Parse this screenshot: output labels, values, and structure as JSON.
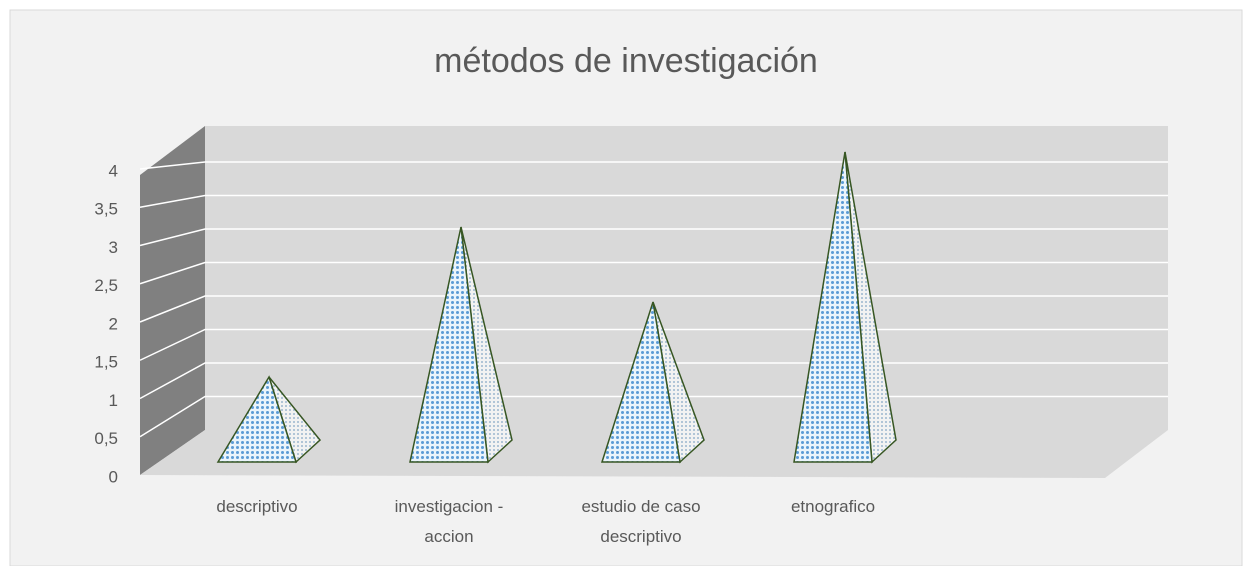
{
  "chart_data": {
    "type": "pyramid3d",
    "title": "métodos de investigación",
    "categories": [
      "descriptivo",
      "investigacion - accion",
      "estudio de caso descriptivo",
      "etnografico",
      null
    ],
    "values": [
      1,
      3,
      2,
      4,
      null
    ],
    "color": "#5b9bd5",
    "edge_color": "#375623",
    "ylim": [
      0,
      4
    ],
    "yticks": [
      0,
      {
        "value": 0.5,
        "label": "0,5"
      },
      1,
      {
        "value": 1.5,
        "label": "1,5"
      },
      2,
      {
        "value": 2.5,
        "label": "2,5"
      },
      3,
      {
        "value": 3.5,
        "label": "3,5"
      },
      4
    ],
    "grid": true
  }
}
